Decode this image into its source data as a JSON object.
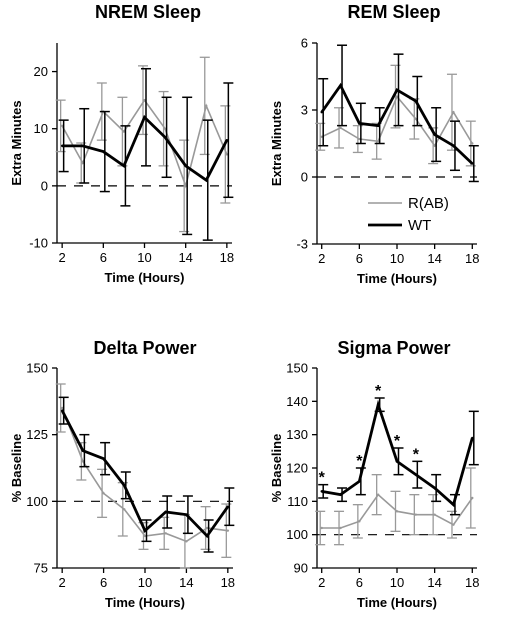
{
  "chart_data": [
    {
      "type": "line",
      "title": "NREM Sleep",
      "xlabel": "Time (Hours)",
      "ylabel": "Extra Minutes",
      "xlim": [
        1.5,
        18.5
      ],
      "ylim": [
        -10,
        25
      ],
      "xticks": [
        2,
        6,
        10,
        14,
        18
      ],
      "yticks": [
        -10,
        0,
        10,
        20
      ],
      "reference_line": 0,
      "series": [
        {
          "name": "R(AB)",
          "color": "#999999",
          "x": [
            2,
            4,
            6,
            8,
            10,
            12,
            14,
            16,
            18
          ],
          "values": [
            10.5,
            4,
            13,
            9.5,
            15,
            10,
            0,
            14,
            5.5
          ],
          "errors": [
            4.5,
            3.5,
            5,
            6,
            6,
            6.5,
            8,
            8.5,
            8.5
          ]
        },
        {
          "name": "WT",
          "color": "#000000",
          "x": [
            2,
            4,
            6,
            8,
            10,
            12,
            14,
            16,
            18
          ],
          "values": [
            7,
            7,
            6,
            3.5,
            12,
            8.5,
            3.5,
            1,
            8
          ],
          "errors": [
            4.5,
            6.5,
            7,
            7,
            8.5,
            7,
            12,
            10.5,
            10
          ]
        }
      ]
    },
    {
      "type": "line",
      "title": "REM Sleep",
      "xlabel": "Time (Hours)",
      "ylabel": "Extra Minutes",
      "xlim": [
        1.5,
        18.5
      ],
      "ylim": [
        -3,
        6
      ],
      "xticks": [
        2,
        6,
        10,
        14,
        18
      ],
      "yticks": [
        -3,
        0,
        3,
        6
      ],
      "reference_line": 0,
      "legend": [
        "R(AB)",
        "WT"
      ],
      "legend_position": "bottom-right",
      "series": [
        {
          "name": "R(AB)",
          "color": "#999999",
          "x": [
            2,
            4,
            6,
            8,
            10,
            12,
            14,
            16,
            18
          ],
          "values": [
            1.8,
            2.2,
            1.7,
            1.6,
            3.6,
            2.6,
            1.4,
            2.9,
            1.5
          ],
          "errors": [
            0.6,
            0.9,
            0.6,
            0.8,
            1.4,
            0.9,
            0.8,
            1.7,
            1
          ]
        },
        {
          "name": "WT",
          "color": "#000000",
          "x": [
            2,
            4,
            6,
            8,
            10,
            12,
            14,
            16,
            18
          ],
          "values": [
            2.9,
            4.1,
            2.4,
            2.3,
            3.9,
            3.4,
            1.9,
            1.4,
            0.6
          ],
          "errors": [
            1.5,
            1.8,
            0.9,
            0.8,
            1.6,
            1.1,
            1.2,
            1.1,
            0.8
          ]
        }
      ]
    },
    {
      "type": "line",
      "title": "Delta Power",
      "xlabel": "Time (Hours)",
      "ylabel": "% Baseline",
      "xlim": [
        1.5,
        18.5
      ],
      "ylim": [
        75,
        150
      ],
      "xticks": [
        2,
        6,
        10,
        14,
        18
      ],
      "yticks": [
        75,
        100,
        125,
        150
      ],
      "reference_line": 100,
      "series": [
        {
          "name": "R(AB)",
          "color": "#999999",
          "x": [
            2,
            4,
            6,
            8,
            10,
            12,
            14,
            16,
            18
          ],
          "values": [
            135,
            115,
            103,
            97,
            87,
            88,
            85,
            90,
            89
          ],
          "errors": [
            9,
            7,
            9,
            10,
            5,
            6,
            10,
            8,
            10
          ]
        },
        {
          "name": "WT",
          "color": "#000000",
          "x": [
            2,
            4,
            6,
            8,
            10,
            12,
            14,
            16,
            18
          ],
          "values": [
            134,
            119,
            116,
            106,
            89,
            96,
            95,
            87,
            98
          ],
          "errors": [
            5,
            6,
            6,
            5,
            4,
            6,
            7,
            6,
            7
          ]
        }
      ]
    },
    {
      "type": "line",
      "title": "Sigma Power",
      "xlabel": "Time (Hours)",
      "ylabel": "% Baseline",
      "xlim": [
        1.5,
        18.5
      ],
      "ylim": [
        90,
        150
      ],
      "xticks": [
        2,
        6,
        10,
        14,
        18
      ],
      "yticks": [
        90,
        100,
        110,
        120,
        130,
        140,
        150
      ],
      "reference_line": 100,
      "significance": "*",
      "significant_x": [
        2,
        6,
        8,
        10,
        12
      ],
      "series": [
        {
          "name": "R(AB)",
          "color": "#999999",
          "x": [
            2,
            4,
            6,
            8,
            10,
            12,
            14,
            16,
            18
          ],
          "values": [
            102,
            102,
            104,
            112,
            107,
            106,
            106,
            103,
            111
          ],
          "errors": [
            5,
            5,
            5,
            6,
            6,
            6,
            6,
            4,
            9
          ]
        },
        {
          "name": "WT",
          "color": "#000000",
          "x": [
            2,
            4,
            6,
            8,
            10,
            12,
            14,
            16,
            18
          ],
          "values": [
            113,
            112,
            116,
            139,
            122,
            118,
            114,
            109,
            129
          ],
          "errors": [
            2,
            2,
            4,
            2,
            4,
            4,
            4,
            3,
            8
          ]
        }
      ]
    }
  ]
}
